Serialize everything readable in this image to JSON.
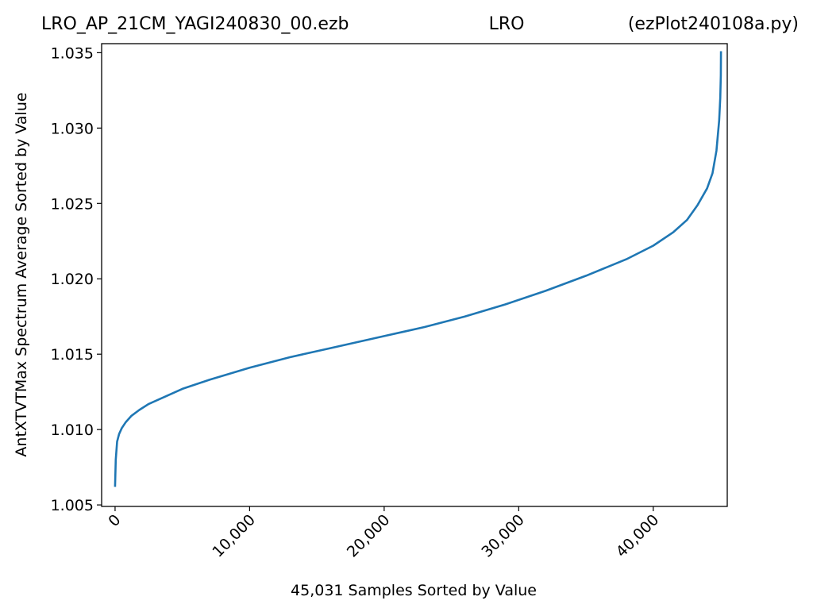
{
  "header": {
    "left": "LRO_AP_21CM_YAGI240830_00.ezb",
    "center": "LRO",
    "right": "(ezPlot240108a.py)"
  },
  "chart_data": {
    "type": "line",
    "xlabel": "45,031 Samples Sorted by Value",
    "ylabel": "AntXTVTMax Spectrum Average Sorted by Value",
    "xlim": [
      -1000,
      45500
    ],
    "ylim": [
      1.0049,
      1.0356
    ],
    "x_ticks": [
      {
        "value": 0,
        "label": "0"
      },
      {
        "value": 10000,
        "label": "10,000"
      },
      {
        "value": 20000,
        "label": "20,000"
      },
      {
        "value": 30000,
        "label": "30,000"
      },
      {
        "value": 40000,
        "label": "40,000"
      }
    ],
    "y_ticks": [
      {
        "value": 1.005,
        "label": "1.005"
      },
      {
        "value": 1.01,
        "label": "1.010"
      },
      {
        "value": 1.015,
        "label": "1.015"
      },
      {
        "value": 1.02,
        "label": "1.020"
      },
      {
        "value": 1.025,
        "label": "1.025"
      },
      {
        "value": 1.03,
        "label": "1.030"
      },
      {
        "value": 1.035,
        "label": "1.035"
      }
    ],
    "grid": false,
    "series": [
      {
        "color": "#1f77b4",
        "x": [
          0,
          50,
          150,
          300,
          500,
          800,
          1200,
          1800,
          2500,
          3500,
          5000,
          7000,
          10000,
          13000,
          16000,
          20000,
          23000,
          26000,
          29000,
          32000,
          35000,
          38000,
          40000,
          41500,
          42500,
          43300,
          44000,
          44400,
          44700,
          44900,
          44980,
          45020,
          45031
        ],
        "y": [
          1.0062,
          1.008,
          1.0092,
          1.0097,
          1.0101,
          1.0105,
          1.0109,
          1.0113,
          1.0117,
          1.0121,
          1.0127,
          1.0133,
          1.0141,
          1.0148,
          1.0154,
          1.0162,
          1.0168,
          1.0175,
          1.0183,
          1.0192,
          1.0202,
          1.0213,
          1.0222,
          1.0231,
          1.0239,
          1.0249,
          1.026,
          1.027,
          1.0285,
          1.0305,
          1.032,
          1.0335,
          1.0351
        ]
      }
    ]
  }
}
